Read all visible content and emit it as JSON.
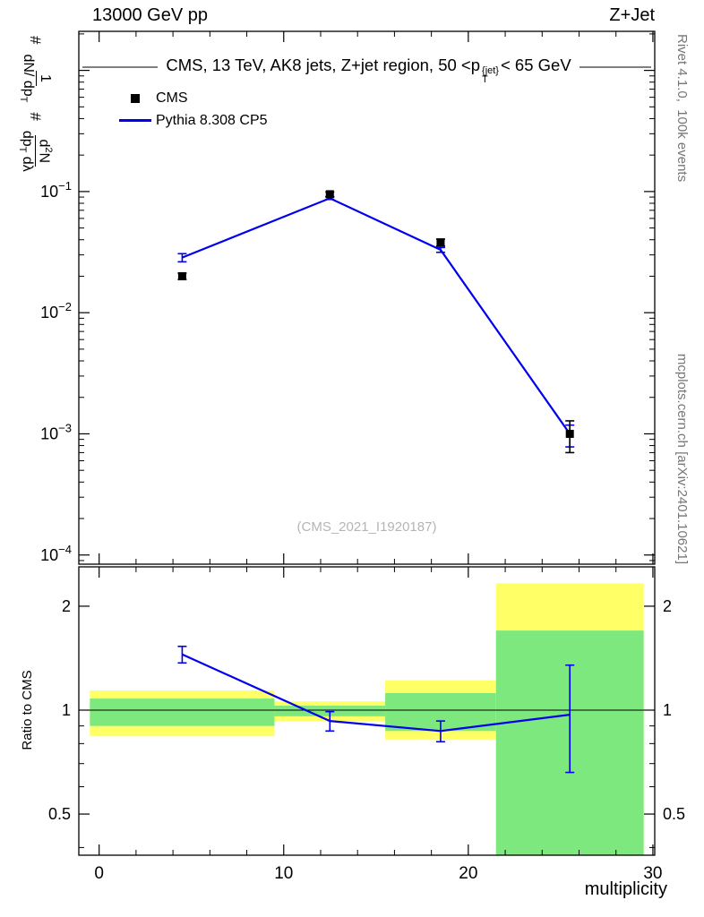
{
  "header": {
    "left": "13000 GeV pp",
    "right": "Z+Jet"
  },
  "panel_title": {
    "pre": "CMS, 13 TeV, AK8 jets, Z+jet region, 50 <p",
    "sub": "T",
    "sup": "{jet}",
    "post": "< 65 GeV"
  },
  "legend": {
    "items": [
      {
        "label": "CMS",
        "marker": "square",
        "color": "#000000"
      },
      {
        "label": "Pythia 8.308 CP5",
        "marker": "line",
        "color": "#0000ee"
      }
    ]
  },
  "watermark": "(CMS_2021_I1920187)",
  "side_notes": {
    "top": "Rivet 4.1.0,  100k events",
    "bottom": "mcplots.cern.ch [arXiv:2401.10621]"
  },
  "ylabel": {
    "hash1": "#",
    "frac1_num": "1",
    "frac1_den_base": "dN/ dp",
    "frac1_den_sub": "T",
    "hash2": "#",
    "frac2_num_base": "d",
    "frac2_num_sup": "2",
    "frac2_num_end": "N",
    "frac2_den_base": "dp",
    "frac2_den_sub": "T",
    "frac2_den_end": " dλ"
  },
  "ratio_ylabel": "Ratio to CMS",
  "xlabel": "multiplicity",
  "chart_data": {
    "type": "line",
    "title": "CMS, 13 TeV, AK8 jets, Z+jet region, 50 <pT{jet}< 65 GeV",
    "xlabel": "multiplicity",
    "x_range": [
      -1.1,
      30.1
    ],
    "x_major_ticks": [
      0,
      10,
      20,
      30
    ],
    "x_minor_step": 2,
    "main_panel": {
      "y_scale": "log",
      "y_range": [
        8.4e-05,
        2.1
      ],
      "y_label_decades": [
        -1,
        -2,
        -3,
        -4
      ],
      "series": [
        {
          "name": "CMS",
          "type": "points",
          "color": "#000000",
          "x": [
            4.5,
            12.5,
            18.5,
            25.5
          ],
          "y": [
            0.02,
            0.095,
            0.038,
            0.001
          ],
          "yerr_lo": [
            0.0012,
            0.004,
            0.0025,
            0.0003
          ],
          "yerr_hi": [
            0.0012,
            0.004,
            0.0025,
            0.00028
          ]
        },
        {
          "name": "Pythia 8.308 CP5",
          "type": "line",
          "color": "#0000ee",
          "x": [
            4.5,
            12.5,
            18.5,
            25.5
          ],
          "y": [
            0.0285,
            0.088,
            0.033,
            0.001
          ],
          "yerr_lo": [
            0.0022,
            0.002,
            0.0015,
            0.00022
          ],
          "yerr_hi": [
            0.0022,
            0.002,
            0.0015,
            0.00018
          ]
        }
      ]
    },
    "ratio_panel": {
      "y_scale": "log",
      "y_range": [
        0.38,
        2.6
      ],
      "y_major_ticks": [
        0.5,
        1,
        2
      ],
      "y_major_labels": [
        "0.5",
        "1",
        "2"
      ],
      "y_minor_ticks": [
        0.4,
        0.6,
        0.7,
        0.8,
        0.9
      ],
      "reference_line": 1.0,
      "band_colors": {
        "outer": "#ffff66",
        "inner": "#7de87d"
      },
      "bands": [
        {
          "x0": -0.5,
          "x1": 9.5,
          "outer": [
            0.84,
            1.14
          ],
          "inner": [
            0.9,
            1.08
          ]
        },
        {
          "x0": 9.5,
          "x1": 15.5,
          "outer": [
            0.93,
            1.06
          ],
          "inner": [
            0.96,
            1.03
          ]
        },
        {
          "x0": 15.5,
          "x1": 21.5,
          "outer": [
            0.82,
            1.22
          ],
          "inner": [
            0.87,
            1.12
          ]
        },
        {
          "x0": 21.5,
          "x1": 29.5,
          "outer": [
            0.38,
            2.33
          ],
          "inner": [
            0.38,
            1.7
          ]
        }
      ],
      "series": [
        {
          "name": "Pythia 8.308 CP5 / CMS",
          "color": "#0000ee",
          "x": [
            4.5,
            12.5,
            18.5,
            25.5
          ],
          "y": [
            1.45,
            0.93,
            0.87,
            0.97
          ],
          "yerr_lo": [
            0.08,
            0.06,
            0.06,
            0.31
          ],
          "yerr_hi": [
            0.08,
            0.06,
            0.06,
            0.38
          ]
        }
      ]
    }
  }
}
